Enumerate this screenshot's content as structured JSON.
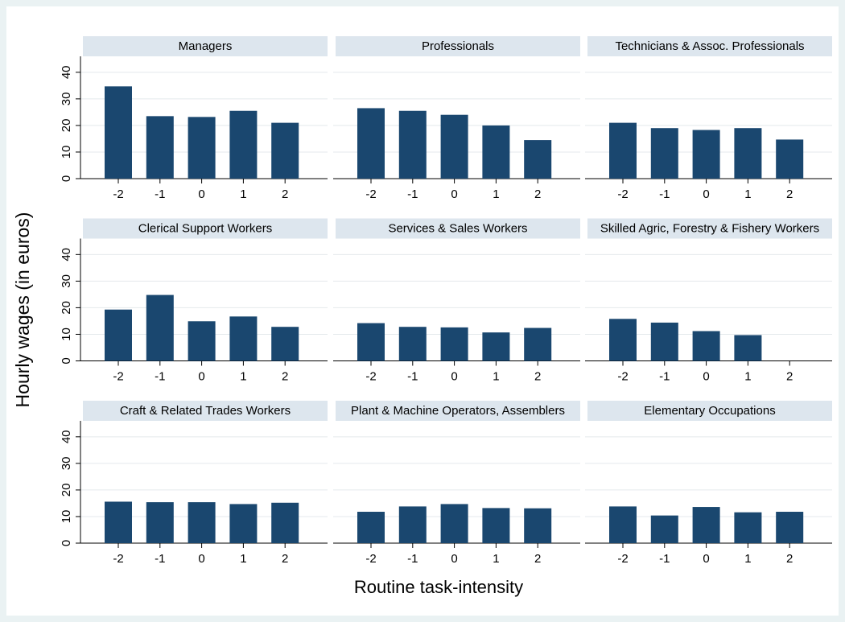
{
  "ylabel": "Hourly wages (in euros)",
  "xlabel": "Routine task-intensity",
  "chart_data": [
    {
      "type": "bar",
      "title": "Managers",
      "categories": [
        "-2",
        "-1",
        "0",
        "1",
        "2"
      ],
      "values": [
        34.7,
        23.5,
        23.2,
        25.5,
        21
      ],
      "color": "#1a476f",
      "ylim": [
        0,
        46
      ],
      "yticks": [
        0,
        10,
        20,
        30,
        40
      ],
      "grid": true
    },
    {
      "type": "bar",
      "title": "Professionals",
      "categories": [
        "-2",
        "-1",
        "0",
        "1",
        "2"
      ],
      "values": [
        26.5,
        25.5,
        24,
        20,
        14.5
      ],
      "color": "#1a476f",
      "ylim": [
        0,
        46
      ],
      "yticks": [
        0,
        10,
        20,
        30,
        40
      ],
      "grid": true
    },
    {
      "type": "bar",
      "title": "Technicians & Assoc. Professionals",
      "categories": [
        "-2",
        "-1",
        "0",
        "1",
        "2"
      ],
      "values": [
        21,
        19,
        18.3,
        19,
        14.7
      ],
      "color": "#1a476f",
      "ylim": [
        0,
        46
      ],
      "yticks": [
        0,
        10,
        20,
        30,
        40
      ],
      "grid": true
    },
    {
      "type": "bar",
      "title": "Clerical Support Workers",
      "categories": [
        "-2",
        "-1",
        "0",
        "1",
        "2"
      ],
      "values": [
        19.3,
        24.8,
        14.9,
        16.7,
        12.8
      ],
      "color": "#1a476f",
      "ylim": [
        0,
        46
      ],
      "yticks": [
        0,
        10,
        20,
        30,
        40
      ],
      "grid": true
    },
    {
      "type": "bar",
      "title": "Services & Sales Workers",
      "categories": [
        "-2",
        "-1",
        "0",
        "1",
        "2"
      ],
      "values": [
        14.2,
        12.8,
        12.6,
        10.7,
        12.4
      ],
      "color": "#1a476f",
      "ylim": [
        0,
        46
      ],
      "yticks": [
        0,
        10,
        20,
        30,
        40
      ],
      "grid": true
    },
    {
      "type": "bar",
      "title": "Skilled Agric, Forestry & Fishery Workers",
      "categories": [
        "-2",
        "-1",
        "0",
        "1",
        "2"
      ],
      "values": [
        15.8,
        14.4,
        11.2,
        9.7,
        null
      ],
      "color": "#1a476f",
      "ylim": [
        0,
        46
      ],
      "yticks": [
        0,
        10,
        20,
        30,
        40
      ],
      "grid": true
    },
    {
      "type": "bar",
      "title": "Craft & Related Trades Workers",
      "categories": [
        "-2",
        "-1",
        "0",
        "1",
        "2"
      ],
      "values": [
        15.6,
        15.4,
        15.4,
        14.7,
        15.2
      ],
      "color": "#1a476f",
      "ylim": [
        0,
        46
      ],
      "yticks": [
        0,
        10,
        20,
        30,
        40
      ],
      "grid": true
    },
    {
      "type": "bar",
      "title": "Plant & Machine Operators, Assemblers",
      "categories": [
        "-2",
        "-1",
        "0",
        "1",
        "2"
      ],
      "values": [
        11.8,
        13.8,
        14.7,
        13.2,
        13.1
      ],
      "color": "#1a476f",
      "ylim": [
        0,
        46
      ],
      "yticks": [
        0,
        10,
        20,
        30,
        40
      ],
      "grid": true
    },
    {
      "type": "bar",
      "title": "Elementary Occupations",
      "categories": [
        "-2",
        "-1",
        "0",
        "1",
        "2"
      ],
      "values": [
        13.8,
        10.4,
        13.6,
        11.6,
        11.8
      ],
      "color": "#1a476f",
      "ylim": [
        0,
        46
      ],
      "yticks": [
        0,
        10,
        20,
        30,
        40
      ],
      "grid": true
    }
  ]
}
